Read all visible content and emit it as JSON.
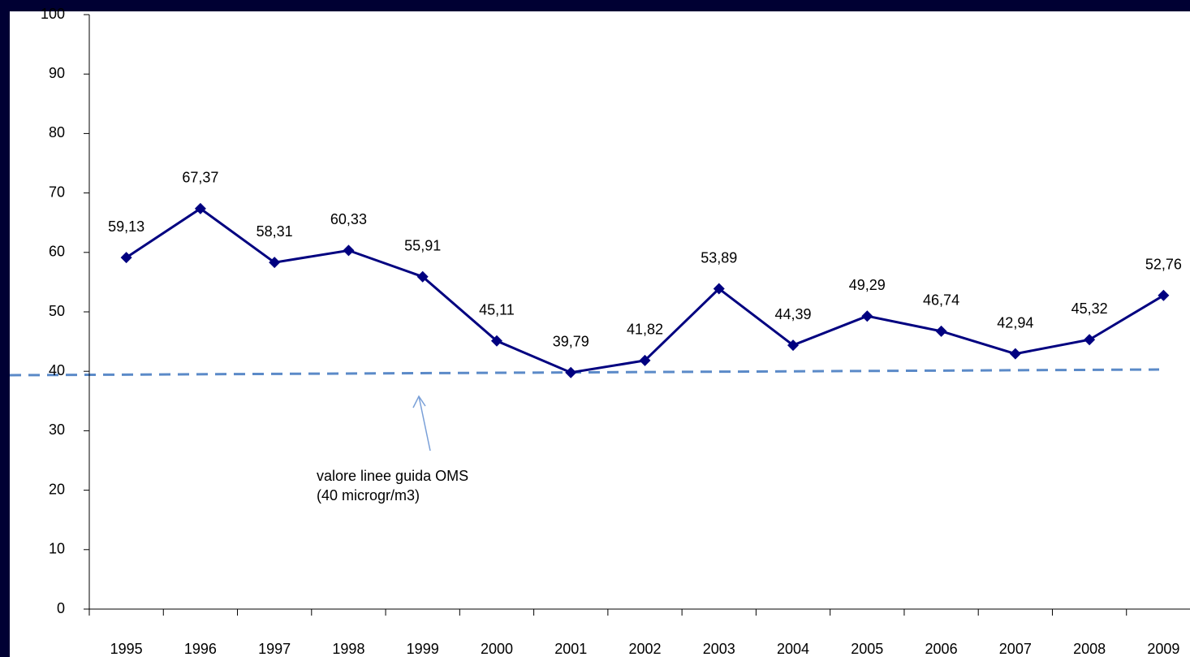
{
  "chart_data": {
    "type": "line",
    "categories": [
      "1995",
      "1996",
      "1997",
      "1998",
      "1999",
      "2000",
      "2001",
      "2002",
      "2003",
      "2004",
      "2005",
      "2006",
      "2007",
      "2008",
      "2009"
    ],
    "series": [
      {
        "color": "#000080",
        "values": [
          59.13,
          67.37,
          58.31,
          60.33,
          55.91,
          45.11,
          39.79,
          41.82,
          53.89,
          44.39,
          49.29,
          46.74,
          42.94,
          45.32,
          52.76
        ],
        "value_labels": [
          "59,13",
          "67,37",
          "58,31",
          "60,33",
          "55,91",
          "45,11",
          "39,79",
          "41,82",
          "53,89",
          "44,39",
          "49,29",
          "46,74",
          "42,94",
          "45,32",
          "52,76"
        ]
      }
    ],
    "annotation": [
      "valore linee guida OMS",
      "(40 microgr/m3)"
    ],
    "ylim": [
      0,
      100
    ],
    "yticks": [
      0,
      10,
      20,
      30,
      40,
      50,
      60,
      70,
      80,
      90,
      100
    ],
    "grid": false
  }
}
